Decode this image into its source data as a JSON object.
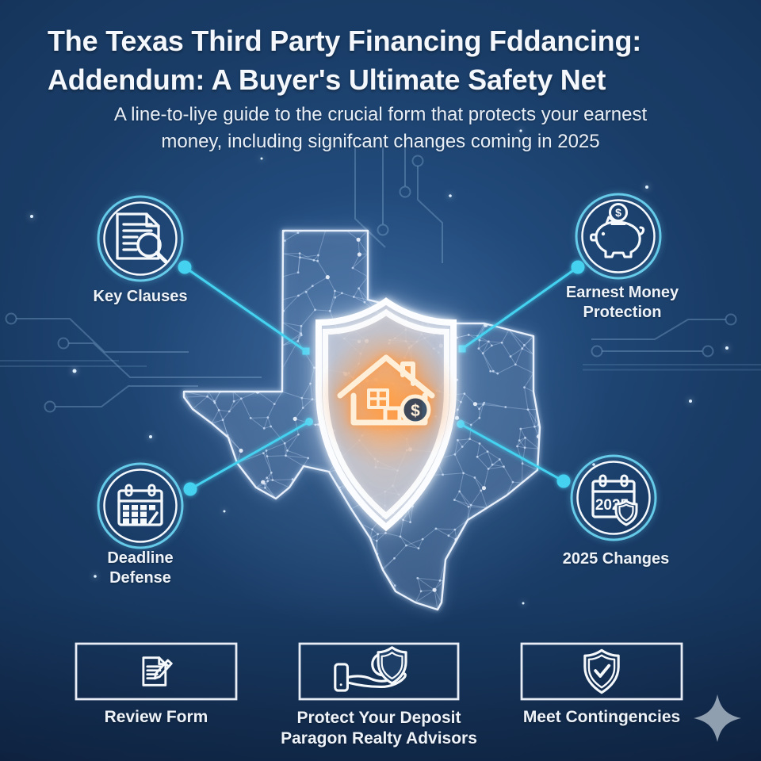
{
  "header": {
    "title_line1": "The Texas Third Party Financing Fddancing:",
    "title_line2": "Addendum: A Buyer's Ultimate Safety Net",
    "subtitle_line1": "A line-to-liye guide to the crucial form that protects your earnest",
    "subtitle_line2": "money, including signifcant changes coming in 2025"
  },
  "features": [
    {
      "label": "Key Clauses",
      "icon": "document-magnifier-icon"
    },
    {
      "label": "Earnest Money Protection",
      "icon": "piggy-bank-coin-icon",
      "coin_symbol": "$"
    },
    {
      "label": "Deadline Defense",
      "icon": "calendar-grid-icon"
    },
    {
      "label": "2025 Changes",
      "icon": "calendar-2025-shield-icon",
      "calendar_year": "2025"
    }
  ],
  "center_graphic": {
    "map_name": "texas-network-map",
    "shield_icon": "home-protection-shield-icon",
    "coin_symbol": "$"
  },
  "bottom_actions": [
    {
      "label": "Review Form",
      "icon": "document-pencil-icon"
    },
    {
      "label": "Protect Your Deposit",
      "icon": "hand-shield-icon"
    },
    {
      "label": "Meet Contingencies",
      "icon": "shield-check-icon"
    }
  ],
  "footer": {
    "brand": "Paragon Realty Advisors"
  },
  "colors": {
    "background": "#16355c",
    "accent_cyan": "#45d2f0",
    "ring_cyan": "#66cbe9",
    "glow_orange": "#f79b4e",
    "text": "#f2f6fa"
  }
}
